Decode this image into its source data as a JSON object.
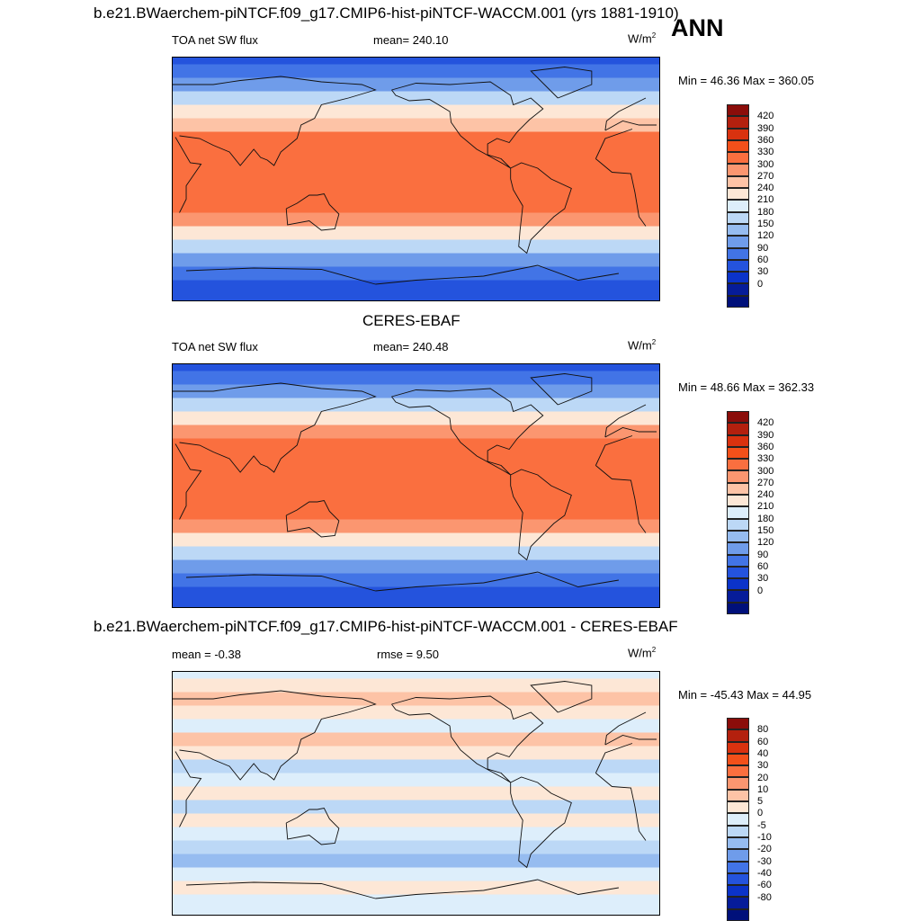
{
  "season": "ANN",
  "panels": [
    {
      "title": "b.e21.BWaerchem-piNTCF.f09_g17.CMIP6-hist-piNTCF-WACCM.001 (yrs 1881-1910)",
      "left_label": "TOA net SW flux",
      "center_label": "mean= 240.10",
      "units": "W/m",
      "units_sup": "2",
      "minmax": "Min =  46.36 Max = 360.05",
      "palette": "sw"
    },
    {
      "title": "CERES-EBAF",
      "left_label": "TOA net SW flux",
      "center_label": "mean= 240.48",
      "units": "W/m",
      "units_sup": "2",
      "minmax": "Min =  48.66 Max = 362.33",
      "palette": "sw"
    },
    {
      "title": "b.e21.BWaerchem-piNTCF.f09_g17.CMIP6-hist-piNTCF-WACCM.001 - CERES-EBAF",
      "left_label": "mean =  -0.38",
      "center_label": "rmse =   9.50",
      "units": "W/m",
      "units_sup": "2",
      "minmax": "Min = -45.43 Max =  44.95",
      "palette": "diff"
    }
  ],
  "chart_data": [
    {
      "type": "heatmap",
      "title": "b.e21.BWaerchem-piNTCF.f09_g17.CMIP6-hist-piNTCF-WACCM.001 (yrs 1881-1910)",
      "variable": "TOA net SW flux",
      "units": "W/m2",
      "mean": 240.1,
      "min": 46.36,
      "max": 360.05,
      "colorbar_levels": [
        "420",
        "390",
        "360",
        "330",
        "300",
        "270",
        "240",
        "210",
        "180",
        "150",
        "120",
        "90",
        "60",
        "30",
        "0"
      ],
      "colorbar_colors": [
        "#8b0d0a",
        "#b3200e",
        "#d9320f",
        "#f3501a",
        "#fa6f3f",
        "#fb9670",
        "#fdc3a6",
        "#fde7d6",
        "#ddeefb",
        "#bcd8f6",
        "#96bcf0",
        "#6f9cea",
        "#4274e6",
        "#2453dd",
        "#0b33c9",
        "#061c99",
        "#00107a"
      ],
      "zonal_profile": [
        {
          "lat": 90,
          "value": 30
        },
        {
          "lat": 80,
          "value": 60
        },
        {
          "lat": 70,
          "value": 100
        },
        {
          "lat": 60,
          "value": 160
        },
        {
          "lat": 50,
          "value": 215
        },
        {
          "lat": 40,
          "value": 265
        },
        {
          "lat": 30,
          "value": 300
        },
        {
          "lat": 20,
          "value": 315
        },
        {
          "lat": 10,
          "value": 320
        },
        {
          "lat": 0,
          "value": 315
        },
        {
          "lat": -10,
          "value": 320
        },
        {
          "lat": -20,
          "value": 310
        },
        {
          "lat": -30,
          "value": 290
        },
        {
          "lat": -40,
          "value": 230
        },
        {
          "lat": -50,
          "value": 160
        },
        {
          "lat": -60,
          "value": 115
        },
        {
          "lat": -70,
          "value": 70
        },
        {
          "lat": -80,
          "value": 45
        },
        {
          "lat": -90,
          "value": 40
        }
      ]
    },
    {
      "type": "heatmap",
      "title": "CERES-EBAF",
      "variable": "TOA net SW flux",
      "units": "W/m2",
      "mean": 240.48,
      "min": 48.66,
      "max": 362.33,
      "colorbar_levels": [
        "420",
        "390",
        "360",
        "330",
        "300",
        "270",
        "240",
        "210",
        "180",
        "150",
        "120",
        "90",
        "60",
        "30",
        "0"
      ],
      "colorbar_colors": [
        "#8b0d0a",
        "#b3200e",
        "#d9320f",
        "#f3501a",
        "#fa6f3f",
        "#fb9670",
        "#fdc3a6",
        "#fde7d6",
        "#ddeefb",
        "#bcd8f6",
        "#96bcf0",
        "#6f9cea",
        "#4274e6",
        "#2453dd",
        "#0b33c9",
        "#061c99",
        "#00107a"
      ],
      "zonal_profile": [
        {
          "lat": 90,
          "value": 30
        },
        {
          "lat": 80,
          "value": 60
        },
        {
          "lat": 70,
          "value": 100
        },
        {
          "lat": 60,
          "value": 160
        },
        {
          "lat": 50,
          "value": 220
        },
        {
          "lat": 40,
          "value": 270
        },
        {
          "lat": 30,
          "value": 300
        },
        {
          "lat": 20,
          "value": 315
        },
        {
          "lat": 10,
          "value": 320
        },
        {
          "lat": 0,
          "value": 315
        },
        {
          "lat": -10,
          "value": 320
        },
        {
          "lat": -20,
          "value": 310
        },
        {
          "lat": -30,
          "value": 295
        },
        {
          "lat": -40,
          "value": 235
        },
        {
          "lat": -50,
          "value": 160
        },
        {
          "lat": -60,
          "value": 110
        },
        {
          "lat": -70,
          "value": 65
        },
        {
          "lat": -80,
          "value": 45
        },
        {
          "lat": -90,
          "value": 40
        }
      ]
    },
    {
      "type": "heatmap",
      "title": "b.e21.BWaerchem-piNTCF.f09_g17.CMIP6-hist-piNTCF-WACCM.001 - CERES-EBAF",
      "units": "W/m2",
      "mean": -0.38,
      "rmse": 9.5,
      "min": -45.43,
      "max": 44.95,
      "colorbar_levels": [
        "80",
        "60",
        "40",
        "30",
        "20",
        "10",
        "5",
        "0",
        "-5",
        "-10",
        "-20",
        "-30",
        "-40",
        "-60",
        "-80"
      ],
      "colorbar_colors": [
        "#8b0d0a",
        "#b3200e",
        "#d9320f",
        "#f3501a",
        "#fa6f3f",
        "#fb9670",
        "#fdc3a6",
        "#fde7d6",
        "#ddeefb",
        "#bcd8f6",
        "#96bcf0",
        "#6f9cea",
        "#4274e6",
        "#2453dd",
        "#0b33c9",
        "#061c99",
        "#00107a"
      ],
      "zonal_profile": [
        {
          "lat": 90,
          "value": -2
        },
        {
          "lat": 80,
          "value": 3
        },
        {
          "lat": 70,
          "value": 6
        },
        {
          "lat": 60,
          "value": 4
        },
        {
          "lat": 50,
          "value": -3
        },
        {
          "lat": 40,
          "value": 5
        },
        {
          "lat": 30,
          "value": 2
        },
        {
          "lat": 20,
          "value": -6
        },
        {
          "lat": 10,
          "value": -4
        },
        {
          "lat": 0,
          "value": 3
        },
        {
          "lat": -10,
          "value": -7
        },
        {
          "lat": -20,
          "value": 4
        },
        {
          "lat": -30,
          "value": -5
        },
        {
          "lat": -40,
          "value": -8
        },
        {
          "lat": -50,
          "value": -12
        },
        {
          "lat": -60,
          "value": -4
        },
        {
          "lat": -70,
          "value": 2
        },
        {
          "lat": -80,
          "value": -1
        },
        {
          "lat": -90,
          "value": -1
        }
      ]
    }
  ]
}
